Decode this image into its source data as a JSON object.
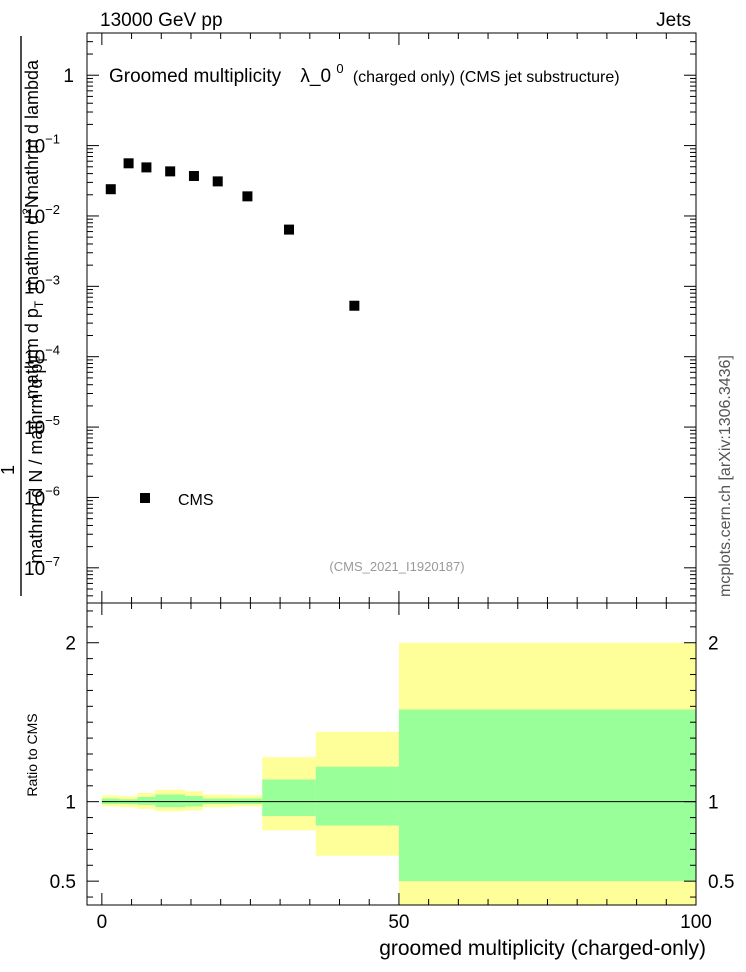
{
  "header": {
    "left": "13000 GeV pp",
    "right": "Jets"
  },
  "side_label": "mcplots.cern.ch [arXiv:1306.3436]",
  "watermark": "(CMS_2021_I1920187)",
  "chart_data": [
    {
      "type": "scatter",
      "panel": "main",
      "title": "Groomed multiplicity",
      "title_lambda": "λ_0",
      "title_lambda_sup": "0",
      "title_suffix": "(charged only) (CMS jet substructure)",
      "ylabel_parts": {
        "frac_top": "mathrm d",
        "frac_top_sup": "2",
        "frac_top_end": "N",
        "pt_text": "mathrm d p",
        "pt_sub": "T",
        "lambda_text": "mathrm d lambda",
        "one": "1",
        "frac_bottom": "mathrm d N / mathrm d p",
        "frac_bottom_sub": "T"
      },
      "y_scale": "log",
      "xlim": [
        -2.5,
        100
      ],
      "ylim_log10": [
        -7.5,
        0.6
      ],
      "y_ticks": [
        {
          "exp": 0,
          "label": "1"
        },
        {
          "exp": -1,
          "label": "10",
          "sup": "−1"
        },
        {
          "exp": -2,
          "label": "10",
          "sup": "−2"
        },
        {
          "exp": -3,
          "label": "10",
          "sup": "−3"
        },
        {
          "exp": -4,
          "label": "10",
          "sup": "−4"
        },
        {
          "exp": -5,
          "label": "10",
          "sup": "−5"
        },
        {
          "exp": -6,
          "label": "10",
          "sup": "−6"
        },
        {
          "exp": -7,
          "label": "10",
          "sup": "−7"
        }
      ],
      "series": [
        {
          "name": "CMS",
          "marker": "square",
          "color": "#000000",
          "x": [
            1.5,
            4.5,
            7.5,
            11.5,
            15.5,
            19.5,
            24.5,
            31.5,
            42.5
          ],
          "y": [
            0.024,
            0.056,
            0.049,
            0.043,
            0.037,
            0.031,
            0.019,
            0.0064,
            0.00053
          ]
        }
      ],
      "legend": {
        "placement": "bottom-left",
        "entries": [
          "CMS"
        ]
      }
    },
    {
      "type": "area",
      "panel": "ratio",
      "ylabel": "Ratio to CMS",
      "xlabel": "groomed multiplicity (charged-only)",
      "xlim": [
        -2.5,
        100
      ],
      "ylim": [
        0.35,
        2.25
      ],
      "x_ticks": [
        {
          "value": 0,
          "label": "0"
        },
        {
          "value": 50,
          "label": "50"
        },
        {
          "value": 100,
          "label": "100"
        }
      ],
      "y_ticks": [
        {
          "value": 0.5,
          "label": "0.5"
        },
        {
          "value": 1,
          "label": "1"
        },
        {
          "value": 2,
          "label": "2"
        }
      ],
      "reference_line": 1,
      "bands": {
        "x_edges": [
          0,
          3,
          6,
          9,
          14,
          17,
          22,
          27,
          36,
          50,
          100
        ],
        "inner": {
          "color": "#99ff99",
          "low": [
            0.985,
            0.985,
            0.98,
            0.965,
            0.97,
            0.985,
            0.985,
            0.91,
            0.85,
            0.5
          ],
          "high": [
            1.02,
            1.015,
            1.03,
            1.045,
            1.035,
            1.02,
            1.02,
            1.14,
            1.22,
            1.58
          ]
        },
        "outer": {
          "color": "#ffff99",
          "low": [
            0.97,
            0.965,
            0.955,
            0.94,
            0.945,
            0.965,
            0.97,
            0.82,
            0.66,
            0.35
          ],
          "high": [
            1.04,
            1.035,
            1.055,
            1.075,
            1.065,
            1.045,
            1.04,
            1.28,
            1.44,
            2.0
          ]
        }
      }
    }
  ]
}
